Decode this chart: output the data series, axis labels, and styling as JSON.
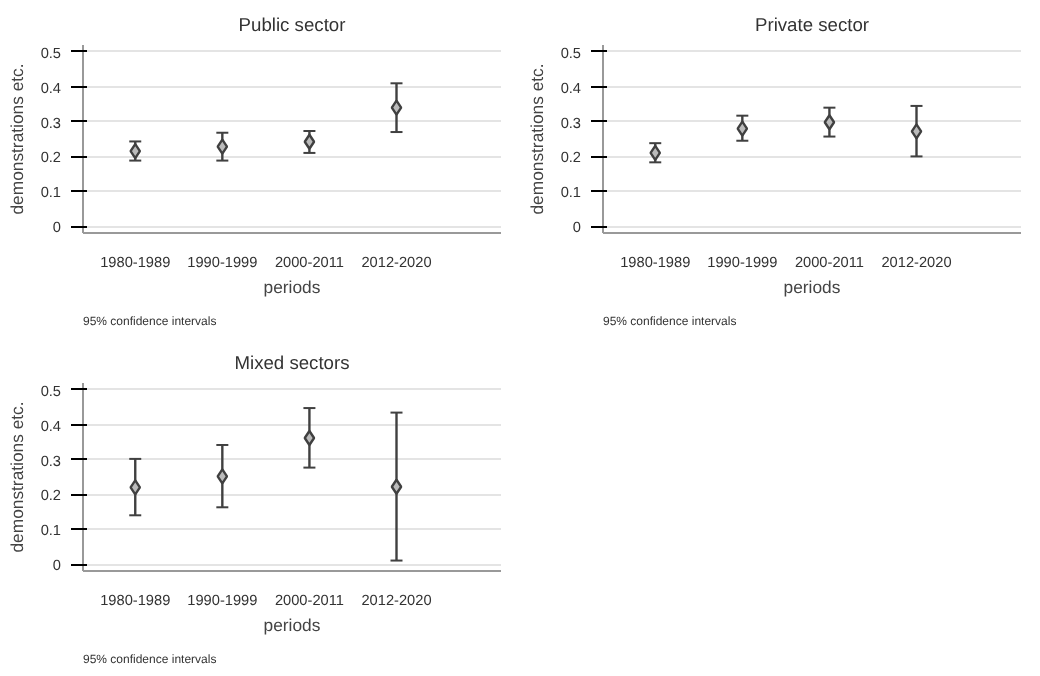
{
  "chart_data": [
    {
      "type": "scatter",
      "title": "Public sector",
      "xlabel": "periods",
      "ylabel": "demonstrations etc.",
      "categories": [
        "1980-1989",
        "1990-1999",
        "2000-2011",
        "2012-2020"
      ],
      "values": [
        0.215,
        0.228,
        0.242,
        0.34
      ],
      "errors": [
        [
          0.188,
          0.243
        ],
        [
          0.188,
          0.268
        ],
        [
          0.21,
          0.273
        ],
        [
          0.27,
          0.41
        ]
      ],
      "color": "#404040",
      "marker": "diamond",
      "ylim": [
        -0.02,
        0.52
      ],
      "yticks": [
        0,
        0.1,
        0.2,
        0.3,
        0.4,
        0.5
      ],
      "grid": "y",
      "annotations": [
        "95% confidence intervals"
      ]
    },
    {
      "type": "scatter",
      "title": "Private sector",
      "xlabel": "periods",
      "ylabel": "demonstrations etc.",
      "categories": [
        "1980-1989",
        "1990-1999",
        "2000-2011",
        "2012-2020"
      ],
      "values": [
        0.21,
        0.28,
        0.298,
        0.272
      ],
      "errors": [
        [
          0.183,
          0.238
        ],
        [
          0.245,
          0.317
        ],
        [
          0.257,
          0.34
        ],
        [
          0.2,
          0.345
        ]
      ],
      "color": "#404040",
      "marker": "diamond",
      "ylim": [
        -0.02,
        0.52
      ],
      "yticks": [
        0,
        0.1,
        0.2,
        0.3,
        0.4,
        0.5
      ],
      "grid": "y",
      "annotations": [
        "95% confidence intervals"
      ]
    },
    {
      "type": "scatter",
      "title": "Mixed sectors",
      "xlabel": "periods",
      "ylabel": "demonstrations etc.",
      "categories": [
        "1980-1989",
        "1990-1999",
        "2000-2011",
        "2012-2020"
      ],
      "values": [
        0.22,
        0.252,
        0.362,
        0.222
      ],
      "errors": [
        [
          0.14,
          0.302
        ],
        [
          0.163,
          0.342
        ],
        [
          0.277,
          0.448
        ],
        [
          0.01,
          0.435
        ]
      ],
      "color": "#404040",
      "marker": "diamond",
      "ylim": [
        -0.02,
        0.52
      ],
      "yticks": [
        0,
        0.1,
        0.2,
        0.3,
        0.4,
        0.5
      ],
      "grid": "y",
      "annotations": [
        "95% confidence intervals"
      ]
    }
  ]
}
